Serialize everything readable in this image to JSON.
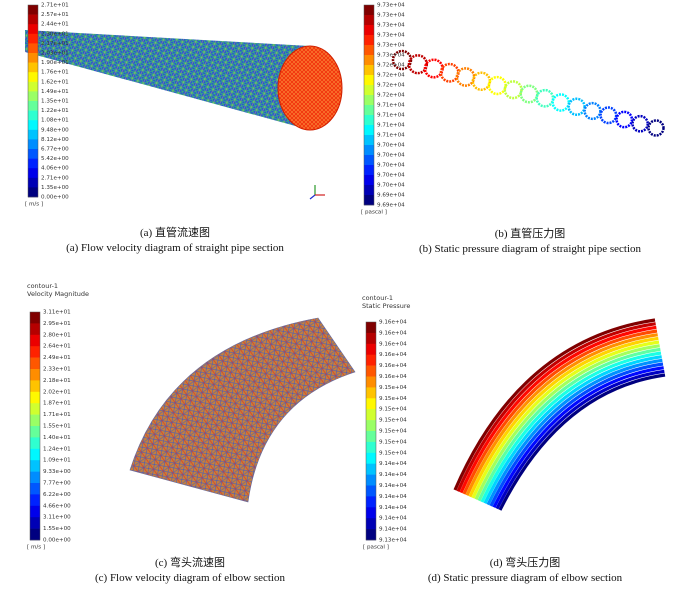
{
  "panels": [
    {
      "colorbar": {
        "labels": [
          "2.71e+01",
          "2.57e+01",
          "2.44e+01",
          "2.30e+01",
          "2.17e+01",
          "2.03e+01",
          "1.90e+01",
          "1.76e+01",
          "1.62e+01",
          "1.49e+01",
          "1.35e+01",
          "1.22e+01",
          "1.08e+01",
          "9.48e+00",
          "8.12e+00",
          "6.77e+00",
          "5.42e+00",
          "4.06e+00",
          "2.71e+00",
          "1.35e+00",
          "0.00e+00"
        ],
        "unit": "[ m/s ]"
      },
      "caption": {
        "zh": "(a) 直管流速图",
        "en": "(a) Flow velocity diagram of straight pipe section"
      }
    },
    {
      "colorbar": {
        "labels": [
          "9.73e+04",
          "9.73e+04",
          "9.73e+04",
          "9.73e+04",
          "9.73e+04",
          "9.73e+04",
          "9.72e+04",
          "9.72e+04",
          "9.72e+04",
          "9.72e+04",
          "9.71e+04",
          "9.71e+04",
          "9.71e+04",
          "9.71e+04",
          "9.70e+04",
          "9.70e+04",
          "9.70e+04",
          "9.70e+04",
          "9.70e+04",
          "9.69e+04",
          "9.69e+04"
        ],
        "unit": "[ pascal ]"
      },
      "caption": {
        "zh": "(b) 直管压力图",
        "en": "(b) Static pressure diagram of straight pipe section"
      }
    },
    {
      "heading": [
        "contour-1",
        "Velocity Magnitude"
      ],
      "colorbar": {
        "labels": [
          "3.11e+01",
          "2.95e+01",
          "2.80e+01",
          "2.64e+01",
          "2.49e+01",
          "2.33e+01",
          "2.18e+01",
          "2.02e+01",
          "1.87e+01",
          "1.71e+01",
          "1.55e+01",
          "1.40e+01",
          "1.24e+01",
          "1.09e+01",
          "9.33e+00",
          "7.77e+00",
          "6.22e+00",
          "4.66e+00",
          "3.11e+00",
          "1.55e+00",
          "0.00e+00"
        ],
        "unit": "[ m/s ]"
      },
      "caption": {
        "zh": "(c) 弯头流速图",
        "en": "(c) Flow velocity diagram of elbow section"
      }
    },
    {
      "heading": [
        "contour-1",
        "Static Pressure"
      ],
      "colorbar": {
        "labels": [
          "9.16e+04",
          "9.16e+04",
          "9.16e+04",
          "9.16e+04",
          "9.16e+04",
          "9.16e+04",
          "9.15e+04",
          "9.15e+04",
          "9.15e+04",
          "9.15e+04",
          "9.15e+04",
          "9.15e+04",
          "9.15e+04",
          "9.14e+04",
          "9.14e+04",
          "9.14e+04",
          "9.14e+04",
          "9.14e+04",
          "9.14e+04",
          "9.14e+04",
          "9.13e+04"
        ],
        "unit": "[ pascal ]"
      },
      "caption": {
        "zh": "(d) 弯头压力图",
        "en": "(d) Static pressure diagram of elbow section"
      }
    }
  ]
}
